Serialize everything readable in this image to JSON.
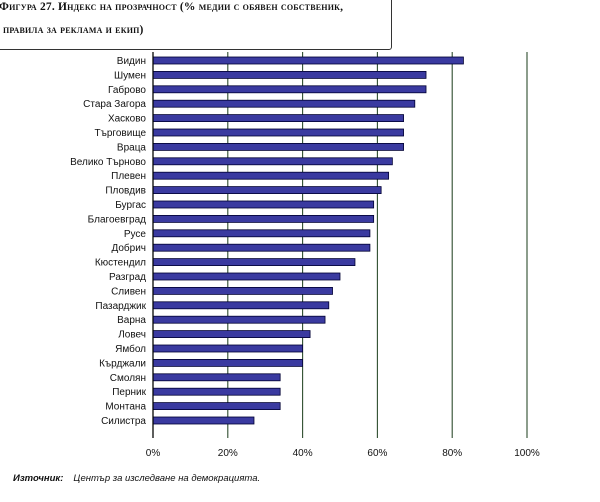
{
  "title": {
    "line1": "Фигура 27.   Индекс на прозрачност (% медии с обявен собственик,",
    "line2": "правила за реклама и екип)"
  },
  "source": {
    "label": "Източник:",
    "text": "Център за изследване на демокрацията."
  },
  "colors": {
    "bar_fill": "#3a3aa0",
    "bar_stroke": "#000033",
    "grid": "#2e4d2e"
  },
  "chart_data": {
    "type": "bar",
    "orientation": "horizontal",
    "categories": [
      "Видин",
      "Шумен",
      "Габрово",
      "Стара Загора",
      "Хасково",
      "Търговище",
      "Враца",
      "Велико Търново",
      "Плевен",
      "Пловдив",
      "Бургас",
      "Благоевград",
      "Русе",
      "Добрич",
      "Кюстендил",
      "Разград",
      "Сливен",
      "Пазарджик",
      "Варна",
      "Ловеч",
      "Ямбол",
      "Кърджали",
      "Смолян",
      "Перник",
      "Монтана",
      "Силистра"
    ],
    "values": [
      83,
      73,
      73,
      70,
      67,
      67,
      67,
      64,
      63,
      61,
      59,
      59,
      58,
      58,
      54,
      50,
      48,
      47,
      46,
      42,
      40,
      40,
      34,
      34,
      34,
      27
    ],
    "xlim": [
      0,
      100
    ],
    "xticks": [
      0,
      20,
      40,
      60,
      80,
      100
    ],
    "tick_labels": [
      "0%",
      "20%",
      "40%",
      "60%",
      "80%",
      "100%"
    ],
    "grid": "vertical",
    "legend": "none"
  }
}
